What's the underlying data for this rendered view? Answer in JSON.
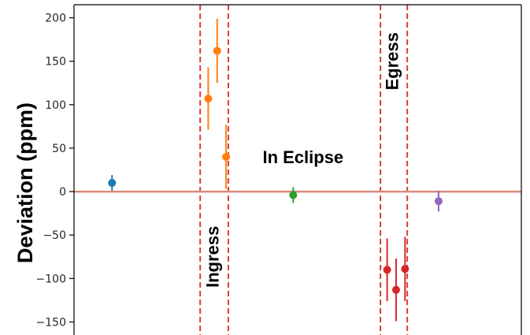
{
  "chart_data": {
    "type": "scatter",
    "title": "",
    "xlabel": "",
    "ylabel": "Deviation (ppm)",
    "xlim": [
      0,
      10
    ],
    "ylim": [
      -165,
      215
    ],
    "y_ticks": [
      200,
      150,
      100,
      50,
      0,
      -50,
      -100,
      -150
    ],
    "y_tick_labels": [
      "200",
      "150",
      "100",
      "50",
      "0",
      "−50",
      "−100",
      "−150"
    ],
    "show_x_ticks": false,
    "grid": false,
    "legend": "none",
    "reference_line": {
      "y": 0,
      "color": "#d98a7a"
    },
    "vlines": [
      {
        "x": 2.82,
        "color": "#e03a3a",
        "style": "dashed"
      },
      {
        "x": 3.45,
        "color": "#e03a3a",
        "style": "dashed"
      },
      {
        "x": 6.85,
        "color": "#e03a3a",
        "style": "dashed"
      },
      {
        "x": 7.45,
        "color": "#e03a3a",
        "style": "dashed"
      }
    ],
    "annotations": [
      {
        "text": "Ingress",
        "x": 3.13,
        "y": -75,
        "rotation": -90
      },
      {
        "text": "In Eclipse",
        "x": 5.12,
        "y": 38,
        "rotation": 0
      },
      {
        "text": "Egress",
        "x": 7.14,
        "y": 150,
        "rotation": -90
      }
    ],
    "series": [
      {
        "color": "#1f77b4",
        "points": [
          {
            "x": 0.85,
            "y": 10,
            "err": 9
          }
        ]
      },
      {
        "color": "#ff7f0e",
        "points": [
          {
            "x": 3.0,
            "y": 107,
            "err": 36
          },
          {
            "x": 3.2,
            "y": 162,
            "err": 37
          },
          {
            "x": 3.4,
            "y": 40,
            "err": 37
          }
        ]
      },
      {
        "color": "#2ca02c",
        "points": [
          {
            "x": 4.9,
            "y": -4,
            "err": 9
          }
        ]
      },
      {
        "color": "#d62728",
        "points": [
          {
            "x": 7.0,
            "y": -90,
            "err": 36
          },
          {
            "x": 7.2,
            "y": -113,
            "err": 36
          },
          {
            "x": 7.4,
            "y": -89,
            "err": 37
          }
        ]
      },
      {
        "color": "#9467bd",
        "points": [
          {
            "x": 8.15,
            "y": -11,
            "err": 12
          }
        ]
      }
    ]
  }
}
